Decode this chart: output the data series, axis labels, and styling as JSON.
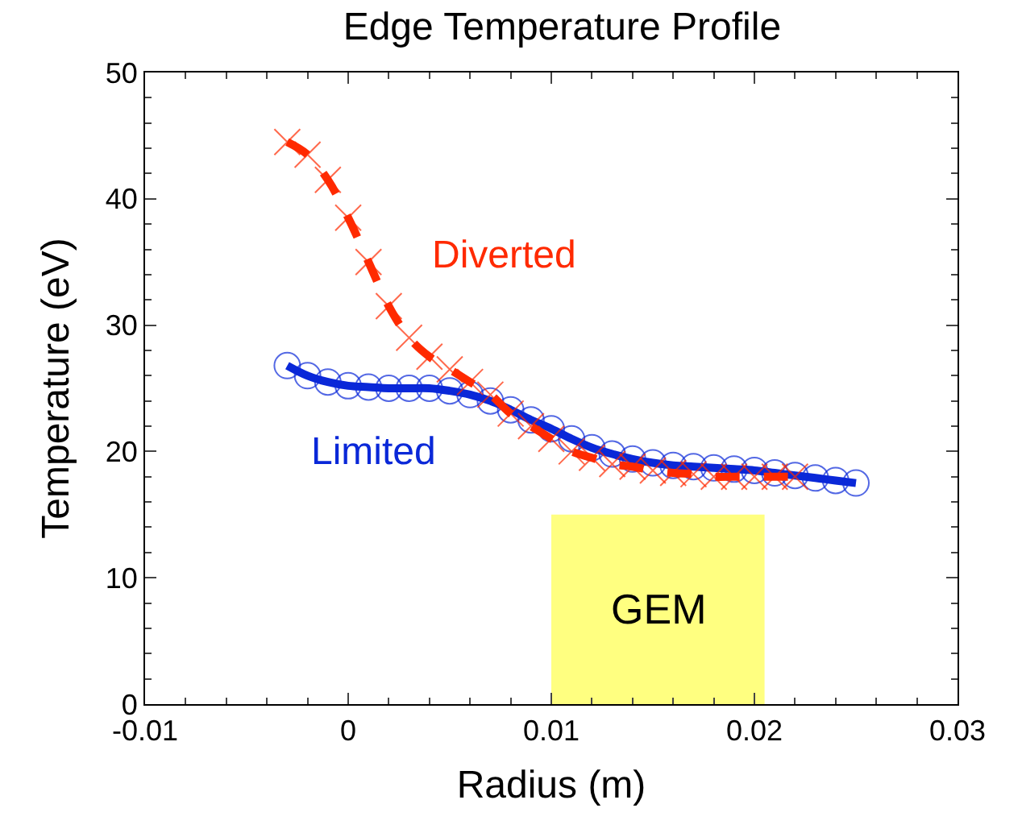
{
  "chart_data": {
    "type": "line",
    "title": "Edge Temperature Profile",
    "xlabel": "Radius (m)",
    "ylabel": "Temperature (eV)",
    "xlim": [
      -0.01,
      0.03
    ],
    "xticks": [
      -0.01,
      0,
      0.01,
      0.02,
      0.03
    ],
    "ylim": [
      0,
      50
    ],
    "yticks": [
      0,
      10,
      20,
      30,
      40,
      50
    ],
    "grid": false,
    "legend": false,
    "series": [
      {
        "name": "Diverted",
        "color": "#ff2a00",
        "marker": "cross",
        "line_style": "dashed",
        "x": [
          -0.003,
          -0.002,
          -0.001,
          0,
          0.001,
          0.002,
          0.003,
          0.004,
          0.005,
          0.006,
          0.007,
          0.008,
          0.009,
          0.01,
          0.011,
          0.012,
          0.013,
          0.014,
          0.015,
          0.016,
          0.017,
          0.018,
          0.019,
          0.02,
          0.021,
          0.022
        ],
        "values": [
          44.5,
          43.5,
          41.5,
          38.5,
          35,
          31.5,
          29,
          27.5,
          26.5,
          25.5,
          24.5,
          23,
          22,
          21,
          20,
          19.5,
          19,
          18.8,
          18.5,
          18.3,
          18.2,
          18,
          18,
          18,
          18,
          18
        ]
      },
      {
        "name": "Limited",
        "color": "#0a28d8",
        "marker": "circle",
        "line_style": "solid",
        "x": [
          -0.003,
          -0.002,
          -0.001,
          0,
          0.001,
          0.002,
          0.003,
          0.004,
          0.005,
          0.006,
          0.007,
          0.008,
          0.009,
          0.01,
          0.011,
          0.012,
          0.013,
          0.014,
          0.015,
          0.016,
          0.017,
          0.018,
          0.019,
          0.02,
          0.021,
          0.022,
          0.023,
          0.024,
          0.025
        ],
        "values": [
          26.8,
          26,
          25.5,
          25.2,
          25.1,
          25,
          25,
          25,
          24.8,
          24.5,
          24,
          23.3,
          22.5,
          21.8,
          21,
          20.3,
          19.8,
          19.4,
          19.1,
          18.9,
          18.8,
          18.7,
          18.6,
          18.5,
          18.3,
          18.1,
          17.9,
          17.7,
          17.5
        ]
      }
    ],
    "bands": [
      {
        "axis": "x",
        "from": 0.01,
        "to": 0.0205,
        "label": "GEM",
        "color": "#ffff80"
      }
    ]
  }
}
